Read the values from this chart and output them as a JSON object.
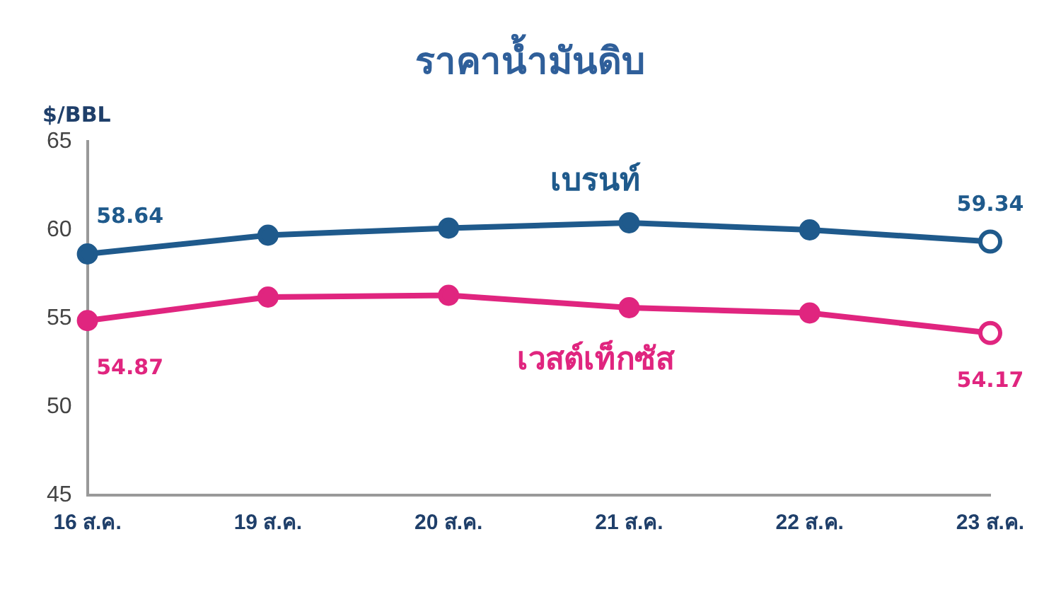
{
  "chart_data": {
    "type": "line",
    "title": "ราคาน้ำมันดิบ",
    "ylabel": "$/BBL",
    "categories": [
      "16 ส.ค.",
      "19 ส.ค.",
      "20 ส.ค.",
      "21 ส.ค.",
      "22 ส.ค.",
      "23 ส.ค."
    ],
    "series": [
      {
        "name": "เบรนท์",
        "color": "#1f5a8c",
        "values": [
          58.64,
          59.7,
          60.1,
          60.4,
          60.0,
          59.34
        ],
        "value_labels": [
          "58.64",
          null,
          null,
          null,
          null,
          "59.34"
        ]
      },
      {
        "name": "เวสต์เท็กซัส",
        "color": "#e0257f",
        "values": [
          54.87,
          56.2,
          56.3,
          55.6,
          55.3,
          54.17
        ],
        "value_labels": [
          "54.87",
          null,
          null,
          null,
          null,
          "54.17"
        ]
      }
    ],
    "ylim": [
      45,
      65
    ],
    "yticks": [
      45,
      50,
      55,
      60,
      65
    ],
    "grid": false,
    "legend": false,
    "marker": "circle",
    "line_style": "solid"
  }
}
